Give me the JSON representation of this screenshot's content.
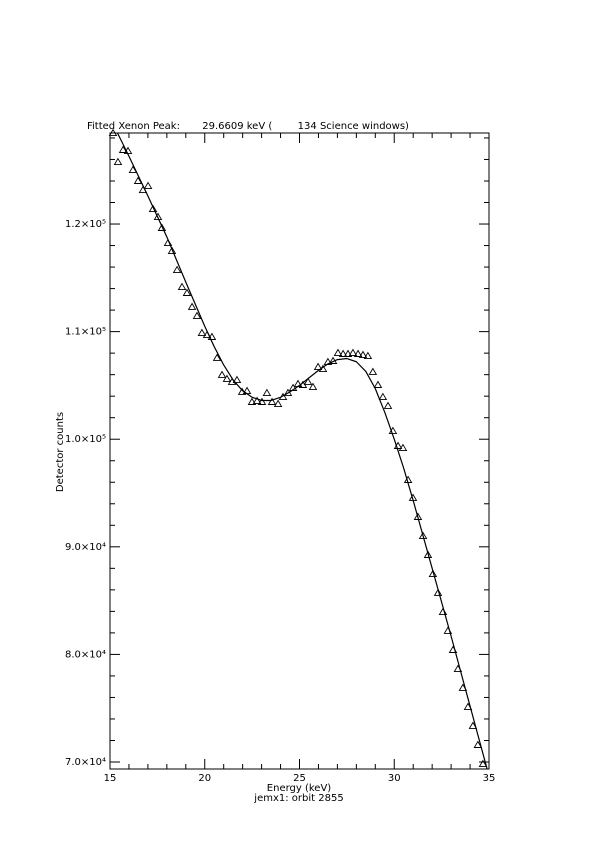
{
  "chart_data": {
    "type": "scatter",
    "title": "Fitted Xenon Peak:       29.6609 keV (        134 Science windows)",
    "xlabel": "Energy (keV)",
    "subtitle": "jemx1: orbit 2855",
    "ylabel": "Detector counts",
    "xlim": [
      15,
      35
    ],
    "ylim": [
      69350,
      128460
    ],
    "xticks": [
      15,
      20,
      25,
      30,
      35
    ],
    "yticks": [
      {
        "value": 70000,
        "label": "7.0×10⁴"
      },
      {
        "value": 80000,
        "label": "8.0×10⁴"
      },
      {
        "value": 90000,
        "label": "9.0×10⁴"
      },
      {
        "value": 100000,
        "label": "1.0×10⁵"
      },
      {
        "value": 110000,
        "label": "1.1×10⁵"
      },
      {
        "value": 120000,
        "label": "1.2×10⁵"
      }
    ],
    "minor_ticks": 5,
    "color": "#000000",
    "series": [
      {
        "type": "scatter",
        "marker": "triangle",
        "color": "#000000",
        "x": [
          15.16,
          15.42,
          15.69,
          15.95,
          16.21,
          16.48,
          16.74,
          17.01,
          17.27,
          17.53,
          17.74,
          18.06,
          18.27,
          18.54,
          18.8,
          19.06,
          19.33,
          19.59,
          19.85,
          20.12,
          20.38,
          20.65,
          20.91,
          21.17,
          21.44,
          21.7,
          21.97,
          22.23,
          22.49,
          22.76,
          23.02,
          23.28,
          23.55,
          23.87,
          24.13,
          24.39,
          24.66,
          24.92,
          25.18,
          25.45,
          25.71,
          25.98,
          26.24,
          26.5,
          26.77,
          27.03,
          27.3,
          27.56,
          27.82,
          28.09,
          28.35,
          28.61,
          28.87,
          29.14,
          29.4,
          29.67,
          29.93,
          30.2,
          30.46,
          30.73,
          30.99,
          31.25,
          31.52,
          31.78,
          32.04,
          32.31,
          32.57,
          32.83,
          33.1,
          33.36,
          33.62,
          33.89,
          34.15,
          34.41,
          34.68
        ],
        "values": [
          128450,
          125760,
          126880,
          126780,
          125020,
          124000,
          123160,
          123530,
          121390,
          120650,
          119630,
          118230,
          117490,
          115720,
          114140,
          113590,
          112290,
          111450,
          109870,
          109680,
          109500,
          107550,
          105970,
          105600,
          105320,
          105500,
          104390,
          104480,
          103460,
          103550,
          103460,
          104290,
          103460,
          103270,
          103920,
          104290,
          104760,
          105130,
          105040,
          105320,
          104850,
          106710,
          106520,
          107170,
          107270,
          108010,
          107920,
          107920,
          108010,
          107920,
          107830,
          107730,
          106250,
          105040,
          103920,
          103090,
          100760,
          99370,
          99180,
          96210,
          94540,
          92770,
          91000,
          89240,
          87470,
          85710,
          83940,
          82180,
          80410,
          78640,
          76880,
          75110,
          73350,
          71580,
          69810
        ]
      },
      {
        "type": "line",
        "color": "#000000",
        "x": [
          15.4,
          16,
          17,
          18,
          19,
          20,
          20.5,
          21,
          21.5,
          22,
          22.5,
          23,
          23.5,
          24,
          24.5,
          25,
          25.5,
          26,
          26.5,
          27,
          27.5,
          28,
          28.5,
          29,
          29.5,
          30,
          30.5,
          31,
          32,
          33,
          34,
          34.9
        ],
        "values": [
          128450,
          126300,
          122600,
          118800,
          114600,
          110500,
          108600,
          106900,
          105500,
          104500,
          103900,
          103600,
          103600,
          103900,
          104400,
          105000,
          105700,
          106400,
          107000,
          107400,
          107500,
          107200,
          106300,
          104700,
          102500,
          100000,
          97300,
          94300,
          88000,
          81700,
          75200,
          69350
        ]
      }
    ]
  }
}
